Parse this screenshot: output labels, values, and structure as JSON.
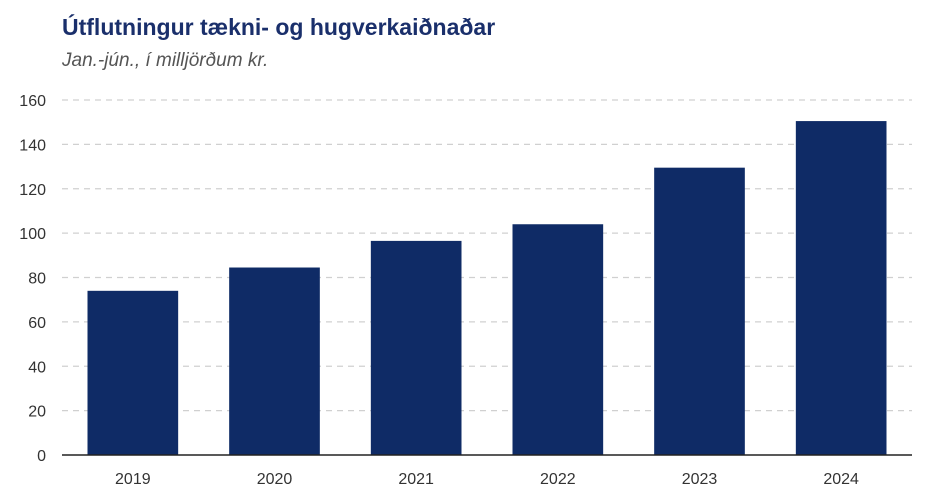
{
  "chart_data": {
    "type": "bar",
    "title": "Útflutningur tækni- og hugverkaiðnaðar",
    "subtitle": "Jan.-jún., í milljörðum kr.",
    "xlabel": "",
    "ylabel": "",
    "categories": [
      "2019",
      "2020",
      "2021",
      "2022",
      "2023",
      "2024"
    ],
    "values": [
      74,
      84.5,
      96.5,
      104,
      129.5,
      150.5
    ],
    "ylim": [
      0,
      160
    ],
    "yticks": [
      0,
      20,
      40,
      60,
      80,
      100,
      120,
      140,
      160
    ],
    "grid": "horizontal-dashed",
    "legend": "none",
    "colors": {
      "bar": "#0f2b66",
      "grid": "#d0d0d0",
      "axis": "#222222"
    }
  }
}
